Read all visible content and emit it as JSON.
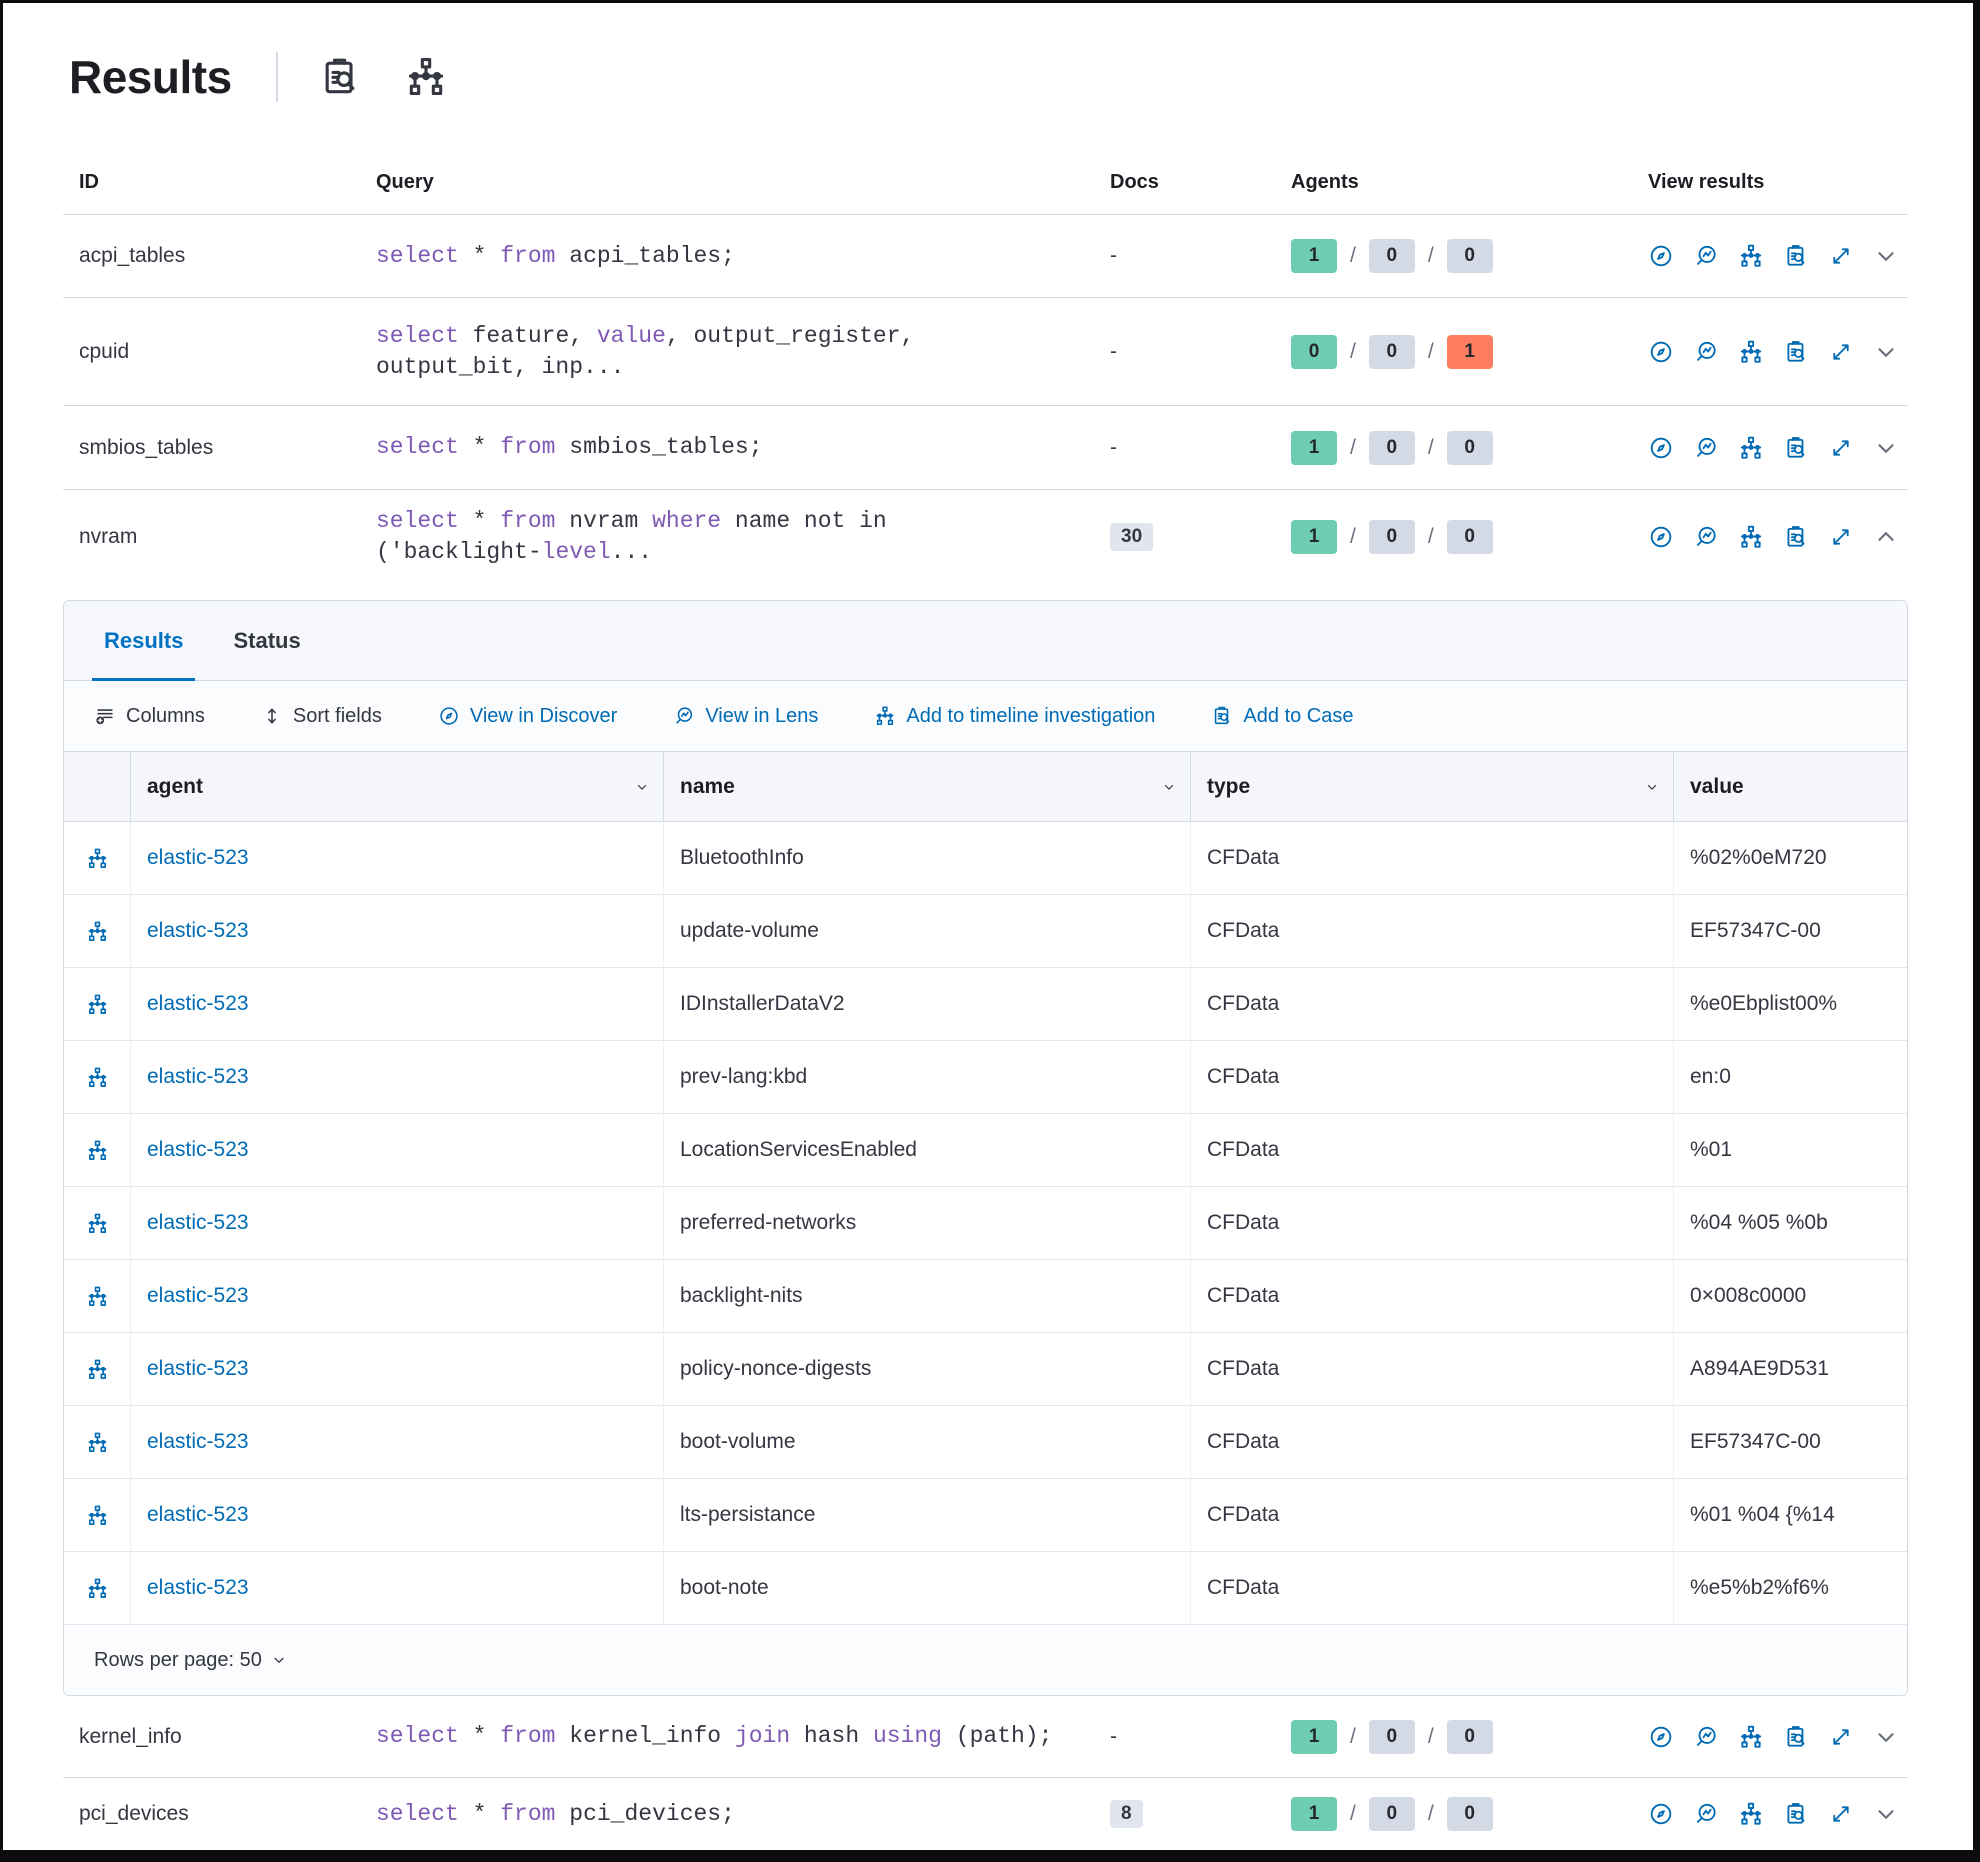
{
  "header": {
    "title": "Results",
    "icons": [
      {
        "name": "clipboard-search-icon-button",
        "icon": "case"
      },
      {
        "name": "hierarchy-icon-button",
        "icon": "hierarchy"
      }
    ]
  },
  "colors": {
    "accent_blue": "#006BB4",
    "tab_active_blue": "#0071C3",
    "sql_keyword_purple": "#7F5AB5",
    "text": "#343741",
    "border": "#D3DAE6",
    "badge_success_green": "#6DCCB1",
    "badge_neutral_gray": "#D3DAE6",
    "badge_danger_red": "#FF7E62",
    "docs_pill_gray": "#E0E5EE"
  },
  "outer_table": {
    "columns": [
      "ID",
      "Query",
      "Docs",
      "Agents",
      "View results"
    ],
    "view_actions": [
      {
        "name": "view-in-discover-icon",
        "icon": "discover"
      },
      {
        "name": "view-in-lens-icon",
        "icon": "lens"
      },
      {
        "name": "add-to-timeline-icon",
        "icon": "hierarchy"
      },
      {
        "name": "add-to-case-icon",
        "icon": "case"
      },
      {
        "name": "expand-results-icon",
        "icon": "expand"
      }
    ],
    "rows": [
      {
        "id": "acpi_tables",
        "query": [
          [
            "k",
            "select"
          ],
          [
            "p",
            " * "
          ],
          [
            "k",
            "from"
          ],
          [
            "p",
            " acpi_tables;"
          ]
        ],
        "docs": "-",
        "docs_badge": false,
        "agents": [
          {
            "value": "1",
            "color": "success"
          },
          {
            "value": "0",
            "color": "neutral"
          },
          {
            "value": "0",
            "color": "neutral"
          }
        ],
        "expanded": false
      },
      {
        "id": "cpuid",
        "query": [
          [
            "k",
            "select"
          ],
          [
            "p",
            " feature, "
          ],
          [
            "k",
            "value"
          ],
          [
            "p",
            ", output_register, output_bit, inp..."
          ]
        ],
        "docs": "-",
        "docs_badge": false,
        "agents": [
          {
            "value": "0",
            "color": "success"
          },
          {
            "value": "0",
            "color": "neutral"
          },
          {
            "value": "1",
            "color": "danger"
          }
        ],
        "expanded": false
      },
      {
        "id": "smbios_tables",
        "query": [
          [
            "k",
            "select"
          ],
          [
            "p",
            " * "
          ],
          [
            "k",
            "from"
          ],
          [
            "p",
            " smbios_tables;"
          ]
        ],
        "docs": "-",
        "docs_badge": false,
        "agents": [
          {
            "value": "1",
            "color": "success"
          },
          {
            "value": "0",
            "color": "neutral"
          },
          {
            "value": "0",
            "color": "neutral"
          }
        ],
        "expanded": false
      },
      {
        "id": "nvram",
        "query": [
          [
            "k",
            "select"
          ],
          [
            "p",
            " * "
          ],
          [
            "k",
            "from"
          ],
          [
            "p",
            " nvram "
          ],
          [
            "k",
            "where"
          ],
          [
            "p",
            " name not in ('backlight-"
          ],
          [
            "k",
            "level"
          ],
          [
            "p",
            "..."
          ]
        ],
        "docs": "30",
        "docs_badge": true,
        "agents": [
          {
            "value": "1",
            "color": "success"
          },
          {
            "value": "0",
            "color": "neutral"
          },
          {
            "value": "0",
            "color": "neutral"
          }
        ],
        "expanded": true
      },
      {
        "id": "kernel_info",
        "query": [
          [
            "k",
            "select"
          ],
          [
            "p",
            " * "
          ],
          [
            "k",
            "from"
          ],
          [
            "p",
            " kernel_info "
          ],
          [
            "k",
            "join"
          ],
          [
            "p",
            " hash "
          ],
          [
            "k",
            "using"
          ],
          [
            "p",
            " (path);"
          ]
        ],
        "docs": "-",
        "docs_badge": false,
        "agents": [
          {
            "value": "1",
            "color": "success"
          },
          {
            "value": "0",
            "color": "neutral"
          },
          {
            "value": "0",
            "color": "neutral"
          }
        ],
        "expanded": false
      },
      {
        "id": "pci_devices",
        "query": [
          [
            "k",
            "select"
          ],
          [
            "p",
            " * "
          ],
          [
            "k",
            "from"
          ],
          [
            "p",
            " pci_devices;"
          ]
        ],
        "docs": "8",
        "docs_badge": true,
        "agents": [
          {
            "value": "1",
            "color": "success"
          },
          {
            "value": "0",
            "color": "neutral"
          },
          {
            "value": "0",
            "color": "neutral"
          }
        ],
        "expanded": false
      }
    ]
  },
  "expanded_panel": {
    "tabs": [
      {
        "label": "Results",
        "active": true
      },
      {
        "label": "Status",
        "active": false
      }
    ],
    "toolbar": [
      {
        "label": "Columns",
        "icon": "columns",
        "accent": false
      },
      {
        "label": "Sort fields",
        "icon": "sort",
        "accent": false
      },
      {
        "label": "View in Discover",
        "icon": "discover",
        "accent": true
      },
      {
        "label": "View in Lens",
        "icon": "lens",
        "accent": true
      },
      {
        "label": "Add to timeline investigation",
        "icon": "hierarchy",
        "accent": true
      },
      {
        "label": "Add to Case",
        "icon": "case",
        "accent": true
      }
    ],
    "grid": {
      "columns": [
        {
          "label": "agent",
          "sortable": true
        },
        {
          "label": "name",
          "sortable": true
        },
        {
          "label": "type",
          "sortable": true
        },
        {
          "label": "value",
          "sortable": false
        }
      ],
      "rows": [
        {
          "agent": "elastic-523",
          "name": "BluetoothInfo",
          "type": "CFData",
          "value": "%02%0eM720"
        },
        {
          "agent": "elastic-523",
          "name": "update-volume",
          "type": "CFData",
          "value": "EF57347C-00"
        },
        {
          "agent": "elastic-523",
          "name": "IDInstallerDataV2",
          "type": "CFData",
          "value": "%e0Ebplist00%"
        },
        {
          "agent": "elastic-523",
          "name": "prev-lang:kbd",
          "type": "CFData",
          "value": "en:0"
        },
        {
          "agent": "elastic-523",
          "name": "LocationServicesEnabled",
          "type": "CFData",
          "value": "%01"
        },
        {
          "agent": "elastic-523",
          "name": "preferred-networks",
          "type": "CFData",
          "value": "%04 %05 %0b"
        },
        {
          "agent": "elastic-523",
          "name": "backlight-nits",
          "type": "CFData",
          "value": "0×008c0000"
        },
        {
          "agent": "elastic-523",
          "name": "policy-nonce-digests",
          "type": "CFData",
          "value": "A894AE9D531"
        },
        {
          "agent": "elastic-523",
          "name": "boot-volume",
          "type": "CFData",
          "value": "EF57347C-00"
        },
        {
          "agent": "elastic-523",
          "name": "lts-persistance",
          "type": "CFData",
          "value": "%01 %04 {%14"
        },
        {
          "agent": "elastic-523",
          "name": "boot-note",
          "type": "CFData",
          "value": "%e5%b2%f6%"
        }
      ]
    },
    "footer": {
      "rows_per_page": "Rows per page: 50"
    }
  }
}
